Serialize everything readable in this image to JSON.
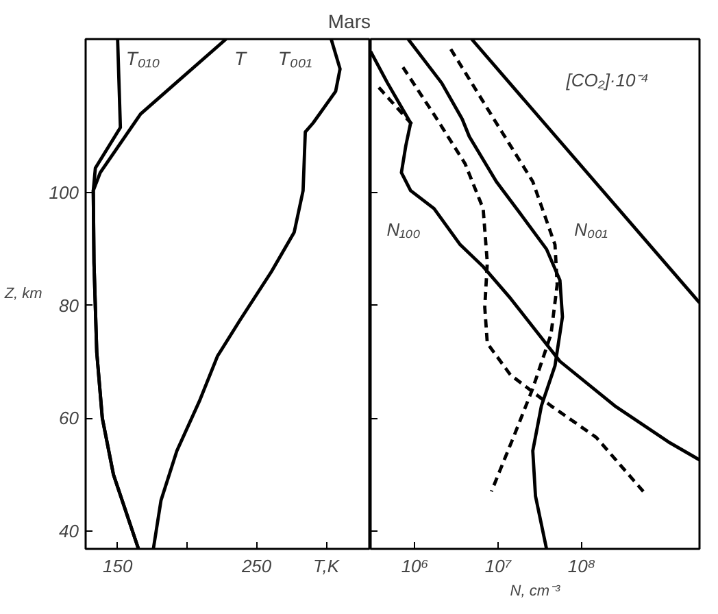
{
  "chart_data": [
    {
      "type": "line",
      "title": "Mars",
      "ylabel": "Z, km",
      "xlim": [
        127,
        332
      ],
      "ylim": [
        36.8,
        127.3
      ],
      "xticks": [
        150,
        {
          "value": 200,
          "label": null
        },
        250,
        {
          "value": 300,
          "label": "T,K"
        }
      ],
      "yticks": [
        40,
        60,
        80,
        100
      ],
      "grid": false,
      "line_style": "solid",
      "marker": "none",
      "series": [
        {
          "name": "T₀₁₀",
          "color": "#000000",
          "x": [
            150,
            152,
            134,
            132.5,
            133,
            135,
            139,
            147,
            165
          ],
          "values": [
            127.3,
            111.6,
            104.4,
            100.4,
            87.6,
            71.7,
            60,
            50,
            36.8
          ]
        },
        {
          "name": "T",
          "color": "#000000",
          "x": [
            228,
            166.5,
            137.5,
            132.5,
            133,
            135,
            139,
            147,
            165
          ],
          "values": [
            127.3,
            114,
            103.6,
            100.4,
            87.6,
            71.7,
            60,
            50,
            36.8
          ]
        },
        {
          "name": "T₀₀₁",
          "color": "#000000",
          "x": [
            303.6,
            310,
            306.8,
            290.6,
            285,
            283.4,
            277,
            260.6,
            238,
            221.8,
            208.8,
            192.6,
            181.2,
            175.7
          ],
          "values": [
            127.3,
            122,
            118,
            112.4,
            110.8,
            100.4,
            93,
            86,
            77.4,
            71,
            63,
            54.2,
            45.4,
            36.8
          ]
        }
      ]
    },
    {
      "type": "line",
      "xlabel": "N, cm⁻³",
      "log": "x",
      "xlim": [
        295000,
        2600000000.0
      ],
      "ylim": [
        36.8,
        127.3
      ],
      "xticks": [
        {
          "value": 1000000.0,
          "label": "10⁶"
        },
        {
          "value": 10000000.0,
          "label": "10⁷"
        },
        {
          "value": 100000000.0,
          "label": "10⁸"
        }
      ],
      "yticks": [
        40,
        60,
        80,
        100
      ],
      "tick_labels": "x",
      "grid": false,
      "marker": "none",
      "annotations": [
        "[CO₂]·10⁻⁴",
        "N₁₀₀",
        "N₀₀₁"
      ],
      "series": [
        {
          "color": "#000000",
          "line_style": "solid",
          "x": [
            4800000.0,
            2600000000.0
          ],
          "values": [
            127.3,
            80.5
          ]
        },
        {
          "color": "#000000",
          "line_style": "solid",
          "x": [
            830000,
            2100000.0,
            3700000.0,
            4500000.0,
            9500000.0,
            20000000.0,
            38000000.0,
            55000000.0,
            59000000.0,
            48000000.0,
            33000000.0,
            26000000.0,
            28000000.0,
            38000000.0
          ],
          "values": [
            127.3,
            119.5,
            113.1,
            110,
            102,
            95.6,
            90,
            84.5,
            78,
            69.3,
            62.2,
            54.2,
            46.2,
            36.8
          ]
        },
        {
          "color": "#000000",
          "line_style": "solid",
          "x": [
            295000,
            470000,
            890000,
            780000,
            690000,
            890000,
            1700000.0,
            3500000.0,
            6600000.0,
            14000000.0,
            55000000.0,
            250000000.0,
            1100000000.0,
            2600000000.0
          ],
          "values": [
            125.1,
            119.5,
            112.4,
            108.4,
            103.6,
            100.4,
            97.2,
            90.8,
            86.9,
            81.3,
            70.1,
            62.2,
            55.8,
            52.6
          ]
        },
        {
          "color": "#000000",
          "line_style": "dashed",
          "x": [
            720000,
            1700000.0,
            4000000.0,
            6600000.0,
            7400000.0,
            6900000.0,
            7400000.0,
            14000000.0,
            43000000.0,
            150000000.0,
            550000000.0
          ],
          "values": [
            122.3,
            113.9,
            105.2,
            97.2,
            87.6,
            79.7,
            73.3,
            67.7,
            62.2,
            56.6,
            47
          ]
        },
        {
          "color": "#000000",
          "line_style": "dashed",
          "x": [
            2700000.0,
            9500000.0,
            26000000.0,
            48000000.0,
            51000000.0,
            43000000.0,
            26000000.0,
            16000000.0,
            8300000.0
          ],
          "values": [
            125.5,
            112.4,
            102,
            90.8,
            83.7,
            74.9,
            65.3,
            57.4,
            47
          ]
        },
        {
          "color": "#000000",
          "line_style": "dashed",
          "x": [
            370000,
            1000000.0
          ],
          "values": [
            118.7,
            111.6
          ]
        }
      ]
    }
  ]
}
